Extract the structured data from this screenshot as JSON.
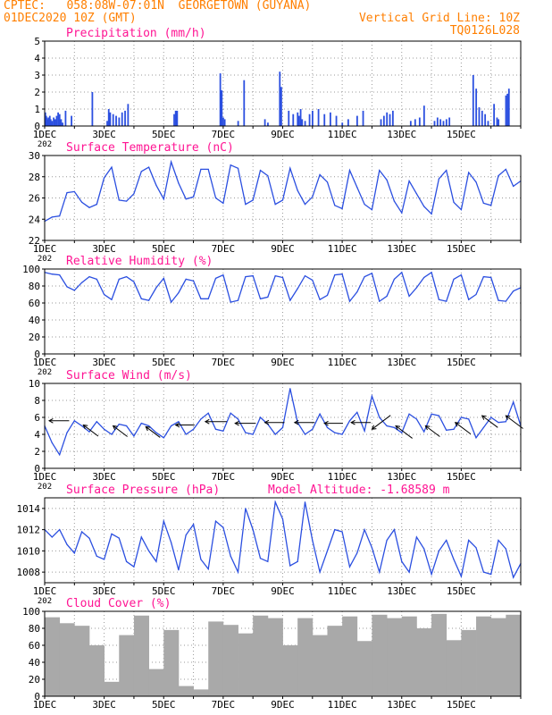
{
  "header": {
    "line1": "CPTEC:   058:08W-07:01N  GEORGETOWN (GUYANA)",
    "line2": "01DEC2020 10Z (GMT)",
    "grid_note": "Vertical Grid Line: 10Z",
    "code": "TQ0126L028",
    "color": "#ff7f00"
  },
  "colors": {
    "title": "#ff1493",
    "line": "#2b4fe0",
    "bar": "#2b4fe0",
    "cloud": "#a9a9a9",
    "arrow": "#000000",
    "grid": "#9a9a9a",
    "header": "#ff7f00"
  },
  "x_tick_labels": [
    "1DEC",
    "3DEC",
    "5DEC",
    "7DEC",
    "9DEC",
    "11DEC",
    "13DEC",
    "15DEC"
  ],
  "cut_year_label": "202",
  "panels": {
    "precip": {
      "title": "Precipitation (mm/h)"
    },
    "temp": {
      "title": "Surface Temperature (nC)"
    },
    "rh": {
      "title": "Relative Humidity (%)"
    },
    "wind": {
      "title": "Surface Wind (m/s)"
    },
    "pres": {
      "title": "Surface Pressure (hPa)",
      "altitude": "Model Altitude: -1.68589 m"
    },
    "cloud": {
      "title": "Cloud Cover (%)"
    }
  },
  "chart_data": [
    {
      "type": "bar",
      "title": "Precipitation (mm/h)",
      "ylim": [
        0,
        5
      ],
      "yticks": [
        0,
        1,
        2,
        3,
        4,
        5
      ],
      "x": [
        0.02,
        0.05,
        0.08,
        0.11,
        0.14,
        0.17,
        0.2,
        0.25,
        0.3,
        0.35,
        0.4,
        0.45,
        0.5,
        0.55,
        0.6,
        0.7,
        0.9,
        1.6,
        2.1,
        2.15,
        2.2,
        2.3,
        2.4,
        2.5,
        2.6,
        2.7,
        2.8,
        4.35,
        4.4,
        4.45,
        5.9,
        5.95,
        6.0,
        6.05,
        6.5,
        6.7,
        7.4,
        7.5,
        7.9,
        7.95,
        8.2,
        8.35,
        8.5,
        8.55,
        8.6,
        8.65,
        8.75,
        8.9,
        9.0,
        9.2,
        9.4,
        9.6,
        9.8,
        10.0,
        10.2,
        10.5,
        10.7,
        11.3,
        11.4,
        11.5,
        11.6,
        11.7,
        12.3,
        12.45,
        12.6,
        12.75,
        13.1,
        13.2,
        13.3,
        13.4,
        13.5,
        13.6,
        14.4,
        14.5,
        14.6,
        14.7,
        14.8,
        14.9,
        15.1,
        15.2,
        15.25,
        15.5,
        15.55,
        15.6
      ],
      "values": [
        0.8,
        0.6,
        0.5,
        0.4,
        0.5,
        0.6,
        0.4,
        0.3,
        0.5,
        0.4,
        0.6,
        0.8,
        0.7,
        0.4,
        0.2,
        0.9,
        0.6,
        2.0,
        0.3,
        1.0,
        0.8,
        0.7,
        0.6,
        0.5,
        0.8,
        0.9,
        1.3,
        0.7,
        0.9,
        0.9,
        3.1,
        2.1,
        0.5,
        0.4,
        0.3,
        2.7,
        0.4,
        0.2,
        3.2,
        2.3,
        0.9,
        0.7,
        0.8,
        0.6,
        1.0,
        0.4,
        0.3,
        0.7,
        0.9,
        1.0,
        0.7,
        0.8,
        0.6,
        0.2,
        0.4,
        0.6,
        0.9,
        0.4,
        0.6,
        0.8,
        0.7,
        0.9,
        0.3,
        0.4,
        0.5,
        1.2,
        0.3,
        0.5,
        0.4,
        0.3,
        0.4,
        0.5,
        3.0,
        2.2,
        1.1,
        0.9,
        0.7,
        0.3,
        1.3,
        0.5,
        0.4,
        1.8,
        1.9,
        2.2
      ]
    },
    {
      "type": "line",
      "title": "Surface Temperature (nC)",
      "ylim": [
        22,
        30
      ],
      "yticks": [
        22,
        24,
        26,
        28,
        30
      ],
      "x": [
        0,
        0.25,
        0.5,
        0.75,
        1.0,
        1.25,
        1.5,
        1.75,
        2.0,
        2.25,
        2.5,
        2.75,
        3.0,
        3.25,
        3.5,
        3.75,
        4.0,
        4.25,
        4.5,
        4.75,
        5.0,
        5.25,
        5.5,
        5.75,
        6.0,
        6.25,
        6.5,
        6.75,
        7.0,
        7.25,
        7.5,
        7.75,
        8.0,
        8.25,
        8.5,
        8.75,
        9.0,
        9.25,
        9.5,
        9.75,
        10.0,
        10.25,
        10.5,
        10.75,
        11.0,
        11.25,
        11.5,
        11.75,
        12.0,
        12.25,
        12.5,
        12.75,
        13.0,
        13.25,
        13.5,
        13.75,
        14.0,
        14.25,
        14.5,
        14.75,
        15.0,
        15.25,
        15.5,
        15.75,
        16.0
      ],
      "values": [
        23.8,
        24.2,
        24.3,
        26.5,
        26.6,
        25.6,
        25.1,
        25.4,
        27.9,
        28.9,
        25.8,
        25.7,
        26.4,
        28.5,
        28.9,
        27.2,
        25.9,
        29.4,
        27.4,
        25.9,
        26.1,
        28.7,
        28.7,
        26.0,
        25.5,
        29.1,
        28.8,
        25.4,
        25.8,
        28.6,
        28.1,
        25.4,
        25.8,
        28.8,
        26.7,
        25.4,
        26.1,
        28.2,
        27.5,
        25.3,
        25.0,
        28.6,
        27.0,
        25.4,
        24.9,
        28.6,
        27.7,
        25.7,
        24.6,
        27.6,
        26.4,
        25.2,
        24.5,
        27.8,
        28.6,
        25.6,
        24.9,
        28.4,
        27.5,
        25.5,
        25.3,
        28.1,
        28.7,
        27.1,
        27.6
      ]
    },
    {
      "type": "line",
      "title": "Relative Humidity (%)",
      "ylim": [
        0,
        100
      ],
      "yticks": [
        0,
        20,
        40,
        60,
        80,
        100
      ],
      "x": [
        0,
        0.25,
        0.5,
        0.75,
        1.0,
        1.25,
        1.5,
        1.75,
        2.0,
        2.25,
        2.5,
        2.75,
        3.0,
        3.25,
        3.5,
        3.75,
        4.0,
        4.25,
        4.5,
        4.75,
        5.0,
        5.25,
        5.5,
        5.75,
        6.0,
        6.25,
        6.5,
        6.75,
        7.0,
        7.25,
        7.5,
        7.75,
        8.0,
        8.25,
        8.5,
        8.75,
        9.0,
        9.25,
        9.5,
        9.75,
        10.0,
        10.25,
        10.5,
        10.75,
        11.0,
        11.25,
        11.5,
        11.75,
        12.0,
        12.25,
        12.5,
        12.75,
        13.0,
        13.25,
        13.5,
        13.75,
        14.0,
        14.25,
        14.5,
        14.75,
        15.0,
        15.25,
        15.5,
        15.75,
        16.0
      ],
      "values": [
        96,
        94,
        93,
        79,
        75,
        84,
        91,
        88,
        70,
        64,
        88,
        91,
        85,
        65,
        63,
        78,
        89,
        61,
        72,
        88,
        86,
        65,
        65,
        89,
        93,
        61,
        63,
        91,
        92,
        65,
        67,
        92,
        90,
        63,
        77,
        92,
        87,
        64,
        69,
        93,
        94,
        62,
        73,
        91,
        95,
        62,
        68,
        88,
        96,
        68,
        78,
        90,
        96,
        64,
        62,
        88,
        93,
        64,
        70,
        91,
        90,
        63,
        62,
        74,
        78
      ]
    },
    {
      "type": "line",
      "title": "Surface Wind (m/s)",
      "ylim": [
        0,
        10
      ],
      "yticks": [
        0,
        2,
        4,
        6,
        8,
        10
      ],
      "x": [
        0,
        0.25,
        0.5,
        0.75,
        1.0,
        1.25,
        1.5,
        1.75,
        2.0,
        2.25,
        2.5,
        2.75,
        3.0,
        3.25,
        3.5,
        3.75,
        4.0,
        4.25,
        4.5,
        4.75,
        5.0,
        5.25,
        5.5,
        5.75,
        6.0,
        6.25,
        6.5,
        6.75,
        7.0,
        7.25,
        7.5,
        7.75,
        8.0,
        8.25,
        8.5,
        8.75,
        9.0,
        9.25,
        9.5,
        9.75,
        10.0,
        10.25,
        10.5,
        10.75,
        11.0,
        11.25,
        11.5,
        11.75,
        12.0,
        12.25,
        12.5,
        12.75,
        13.0,
        13.25,
        13.5,
        13.75,
        14.0,
        14.25,
        14.5,
        14.75,
        15.0,
        15.25,
        15.5,
        15.75,
        16.0
      ],
      "values": [
        5.0,
        3.0,
        1.6,
        4.2,
        5.6,
        5.0,
        4.3,
        5.5,
        4.6,
        4.0,
        5.2,
        5.0,
        3.8,
        5.3,
        5.0,
        4.2,
        3.6,
        5.0,
        5.5,
        4.0,
        4.6,
        5.8,
        6.5,
        4.6,
        4.4,
        6.5,
        5.8,
        4.2,
        4.0,
        6.0,
        5.2,
        4.0,
        4.8,
        9.4,
        5.4,
        4.0,
        4.6,
        6.4,
        4.8,
        4.2,
        4.0,
        5.6,
        6.6,
        4.4,
        8.5,
        6.0,
        5.0,
        4.8,
        4.2,
        6.4,
        5.8,
        4.3,
        6.4,
        6.2,
        4.5,
        4.6,
        6.0,
        5.8,
        3.6,
        4.8,
        6.0,
        5.4,
        5.5,
        7.8,
        5.0
      ],
      "arrows": [
        {
          "x": 0.15,
          "speed": 5.6,
          "direction": "W",
          "y": 5.6
        },
        {
          "x": 1.3,
          "speed": 5.2,
          "direction": "NW",
          "y": 5.1
        },
        {
          "x": 2.3,
          "speed": 5.0,
          "direction": "NW",
          "y": 5.0
        },
        {
          "x": 3.4,
          "speed": 5.0,
          "direction": "NW",
          "y": 4.9
        },
        {
          "x": 4.4,
          "speed": 5.3,
          "direction": "W",
          "y": 5.1
        },
        {
          "x": 5.4,
          "speed": 6.0,
          "direction": "W",
          "y": 5.5
        },
        {
          "x": 6.4,
          "speed": 5.8,
          "direction": "W",
          "y": 5.3
        },
        {
          "x": 7.4,
          "speed": 5.5,
          "direction": "W",
          "y": 5.4
        },
        {
          "x": 8.4,
          "speed": 5.6,
          "direction": "W",
          "y": 5.4
        },
        {
          "x": 9.4,
          "speed": 5.2,
          "direction": "W",
          "y": 5.3
        },
        {
          "x": 10.3,
          "speed": 5.5,
          "direction": "W",
          "y": 5.4
        },
        {
          "x": 11.0,
          "speed": 6.5,
          "direction": "SW",
          "y": 4.6
        },
        {
          "x": 11.8,
          "speed": 5.8,
          "direction": "NW",
          "y": 5.0
        },
        {
          "x": 12.8,
          "speed": 5.0,
          "direction": "NW",
          "y": 5.0
        },
        {
          "x": 13.8,
          "speed": 5.4,
          "direction": "NW",
          "y": 5.4
        },
        {
          "x": 14.7,
          "speed": 5.5,
          "direction": "NW",
          "y": 6.2
        },
        {
          "x": 15.5,
          "speed": 6.0,
          "direction": "NW",
          "y": 6.2
        }
      ]
    },
    {
      "type": "line",
      "title": "Surface Pressure (hPa)",
      "ylim": [
        1007,
        1015
      ],
      "yticks": [
        1008,
        1010,
        1012,
        1014
      ],
      "x": [
        0,
        0.25,
        0.5,
        0.75,
        1.0,
        1.25,
        1.5,
        1.75,
        2.0,
        2.25,
        2.5,
        2.75,
        3.0,
        3.25,
        3.5,
        3.75,
        4.0,
        4.25,
        4.5,
        4.75,
        5.0,
        5.25,
        5.5,
        5.75,
        6.0,
        6.25,
        6.5,
        6.75,
        7.0,
        7.25,
        7.5,
        7.75,
        8.0,
        8.25,
        8.5,
        8.75,
        9.0,
        9.25,
        9.5,
        9.75,
        10.0,
        10.25,
        10.5,
        10.75,
        11.0,
        11.25,
        11.5,
        11.75,
        12.0,
        12.25,
        12.5,
        12.75,
        13.0,
        13.25,
        13.5,
        13.75,
        14.0,
        14.25,
        14.5,
        14.75,
        15.0,
        15.25,
        15.5,
        15.75,
        16.0
      ],
      "values": [
        1012.0,
        1011.3,
        1012.0,
        1010.6,
        1009.8,
        1011.8,
        1011.2,
        1009.5,
        1009.2,
        1011.6,
        1011.2,
        1009.0,
        1008.5,
        1011.3,
        1010.0,
        1009.0,
        1012.8,
        1010.8,
        1008.2,
        1011.5,
        1012.5,
        1009.2,
        1008.3,
        1012.8,
        1012.2,
        1009.5,
        1008.0,
        1014.0,
        1012.0,
        1009.3,
        1009.0,
        1014.6,
        1013.0,
        1008.6,
        1009.0,
        1014.6,
        1011.0,
        1008.0,
        1010.0,
        1012.0,
        1011.8,
        1008.5,
        1009.8,
        1012.0,
        1010.3,
        1008.0,
        1011.0,
        1012.0,
        1009.0,
        1008.0,
        1011.3,
        1010.2,
        1007.8,
        1010.0,
        1011.0,
        1009.2,
        1007.6,
        1011.0,
        1010.3,
        1008.0,
        1007.8,
        1011.0,
        1010.2,
        1007.5,
        1008.8
      ]
    },
    {
      "type": "bar",
      "title": "Cloud Cover (%)",
      "ylim": [
        0,
        100
      ],
      "yticks": [
        0,
        20,
        40,
        60,
        80,
        100
      ],
      "x": [
        0,
        0.5,
        1.0,
        1.5,
        2.0,
        2.5,
        3.0,
        3.5,
        4.0,
        4.5,
        5.0,
        5.5,
        6.0,
        6.5,
        7.0,
        7.5,
        8.0,
        8.5,
        9.0,
        9.5,
        10.0,
        10.5,
        11.0,
        11.5,
        12.0,
        12.5,
        13.0,
        13.5,
        14.0,
        14.5,
        15.0,
        15.5
      ],
      "values": [
        93,
        86,
        83,
        60,
        17,
        72,
        95,
        32,
        78,
        12,
        8,
        88,
        84,
        74,
        95,
        92,
        60,
        92,
        72,
        83,
        94,
        65,
        96,
        92,
        94,
        80,
        97,
        66,
        78,
        94,
        92,
        96
      ]
    }
  ]
}
